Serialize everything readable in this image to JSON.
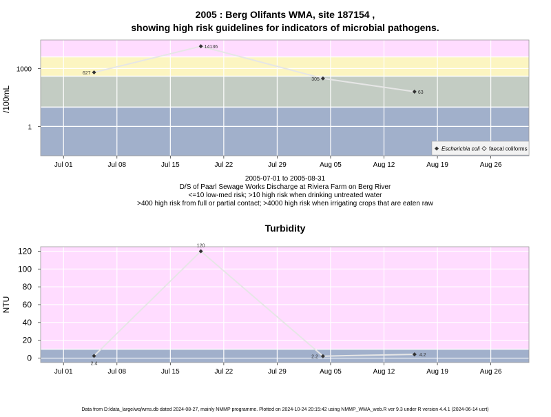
{
  "colors": {
    "band_blue": "#a1b0cb",
    "band_green": "#c3ccc3",
    "band_yellow": "#fcf5c1",
    "band_pink": "#ffdcff",
    "line": "#e6e6e6",
    "marker": "#333333"
  },
  "top": {
    "title_line1": "2005 : Berg Olifants WMA, site 187154 ,",
    "title_line2": "showing high risk guidelines for indicators of microbial pathogens.",
    "ylabel": "/100mL",
    "caption": [
      "2005-07-01 to 2005-08-31",
      "D/S of Paarl Sewage Works Discharge at Riviera Farm on Berg River",
      "<=10 low-med risk; >10 high risk when drinking untreated water",
      ">400 high risk from full or partial contact; >4000 high risk when irrigating crops that are eaten raw"
    ],
    "legend": {
      "ecoli": "Escherichia coli",
      "fecal": "faecal coliforms"
    }
  },
  "bottom": {
    "title": "Turbidity",
    "ylabel": "NTU"
  },
  "footer": "Data from D:/data_large/wq/wms.db dated 2024-08-27, mainly NMMP programme. Plotted on 2024-10-24 20:15:42 using NMMP_WMA_web.R ver 9.3 under R version 4.4.1 (2024-06-14 ucrt)",
  "chart_data": [
    {
      "type": "line",
      "title": "2005 : Berg Olifants WMA, site 187154 , showing high risk guidelines for indicators of microbial pathogens.",
      "xlabel": "",
      "ylabel": "/100mL",
      "y_scale": "log10",
      "x_ticks": [
        "Jul 01",
        "Jul 08",
        "Jul 15",
        "Jul 22",
        "Jul 29",
        "Aug 05",
        "Aug 12",
        "Aug 19",
        "Aug 26"
      ],
      "x_tick_dates": [
        "2005-07-01",
        "2005-07-08",
        "2005-07-15",
        "2005-07-22",
        "2005-07-29",
        "2005-08-05",
        "2005-08-12",
        "2005-08-19",
        "2005-08-26"
      ],
      "y_ticks": [
        1,
        1000
      ],
      "y_tick_labels": [
        "1",
        "1000"
      ],
      "xlim": [
        "2005-06-28",
        "2005-08-31"
      ],
      "ylim": [
        0.03,
        30000
      ],
      "guideline_bands": [
        {
          "from": 0.03,
          "to": 10,
          "label": "low-med risk"
        },
        {
          "from": 10,
          "to": 400,
          "label": "high risk when drinking untreated water"
        },
        {
          "from": 400,
          "to": 4000,
          "label": "high risk from full or partial contact"
        },
        {
          "from": 4000,
          "to": 30000,
          "label": "high risk when irrigating crops that are eaten raw"
        }
      ],
      "series": [
        {
          "name": "Escherichia coli",
          "x": [
            "2005-07-05",
            "2005-07-19",
            "2005-08-04",
            "2005-08-16"
          ],
          "y": [
            627,
            14136,
            305,
            63
          ],
          "labels": [
            "627",
            "14136",
            "305",
            "63"
          ]
        }
      ],
      "legend": {
        "entries": [
          "Escherichia coli",
          "faecal coliforms"
        ],
        "position": "bottom-right"
      },
      "grid": true
    },
    {
      "type": "line",
      "title": "Turbidity",
      "xlabel": "",
      "ylabel": "NTU",
      "x_ticks": [
        "Jul 01",
        "Jul 08",
        "Jul 15",
        "Jul 22",
        "Jul 29",
        "Aug 05",
        "Aug 12",
        "Aug 19",
        "Aug 26"
      ],
      "x_tick_dates": [
        "2005-07-01",
        "2005-07-08",
        "2005-07-15",
        "2005-07-22",
        "2005-07-29",
        "2005-08-05",
        "2005-08-12",
        "2005-08-19",
        "2005-08-26"
      ],
      "y_ticks": [
        0,
        20,
        40,
        60,
        80,
        100,
        120
      ],
      "xlim": [
        "2005-06-28",
        "2005-08-31"
      ],
      "ylim": [
        -5,
        125
      ],
      "guideline_bands": [
        {
          "from": -5,
          "to": 10
        },
        {
          "from": 10,
          "to": 125
        }
      ],
      "series": [
        {
          "name": "",
          "x": [
            "2005-07-05",
            "2005-07-19",
            "2005-08-04",
            "2005-08-16"
          ],
          "y": [
            2.4,
            120,
            2.2,
            4.2
          ],
          "labels": [
            "2.4",
            "120",
            "2.2",
            "4.2"
          ]
        }
      ],
      "grid": true
    }
  ]
}
